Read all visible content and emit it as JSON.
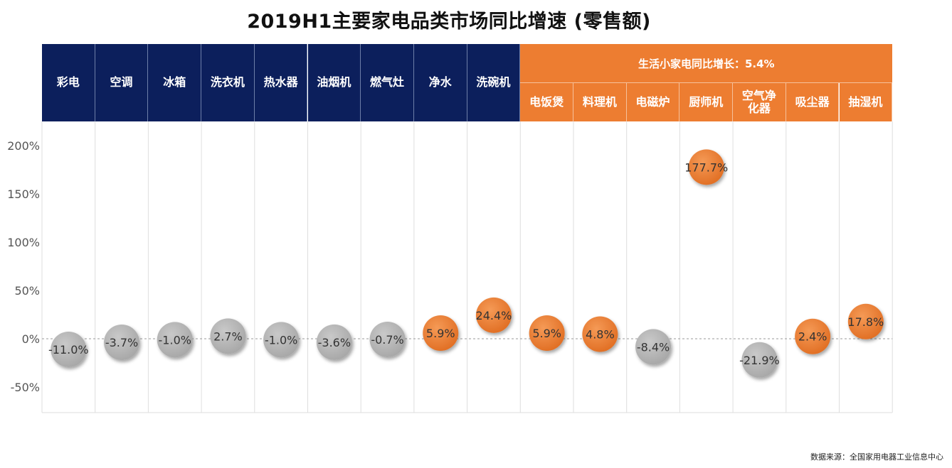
{
  "title": "2019H1主要家电品类市场同比增速 (零售额)",
  "source": "数据来源：全国家用电器工业信息中心",
  "group_header": "生活小家电同比增长：5.4%",
  "colors": {
    "navy": "#0c1f5c",
    "orange": "#ed7d31",
    "gray": "#b3b3b3"
  },
  "chart_data": {
    "type": "scatter",
    "title": "2019H1主要家电品类市场同比增速 (零售额)",
    "categories": [
      "彩电",
      "空调",
      "冰箱",
      "洗衣机",
      "热水器",
      "油烟机",
      "燃气灶",
      "净水",
      "洗碗机",
      "电饭煲",
      "料理机",
      "电磁炉",
      "厨师机",
      "空气净化器",
      "吸尘器",
      "抽湿机"
    ],
    "header_labels": [
      "彩电",
      "空调",
      "冰箱",
      "洗衣机",
      "热水器",
      "油烟机",
      "燃气灶",
      "净水",
      "洗碗机",
      "电饭煲",
      "料理机",
      "电磁炉",
      "厨师机",
      "空气净\n化器",
      "吸尘器",
      "抽湿机"
    ],
    "values": [
      -11.0,
      -3.7,
      -1.0,
      2.7,
      -1.0,
      -3.6,
      -0.7,
      5.9,
      24.4,
      5.9,
      4.8,
      -8.4,
      177.7,
      -21.9,
      2.4,
      17.8
    ],
    "labels": [
      "-11.0%",
      "-3.7%",
      "-1.0%",
      "2.7%",
      "-1.0%",
      "-3.6%",
      "-0.7%",
      "5.9%",
      "24.4%",
      "5.9%",
      "4.8%",
      "-8.4%",
      "177.7%",
      "-21.9%",
      "2.4%",
      "17.8%"
    ],
    "highlight": [
      false,
      false,
      false,
      false,
      false,
      false,
      false,
      true,
      true,
      true,
      true,
      false,
      true,
      false,
      true,
      true
    ],
    "small_appliance": [
      false,
      false,
      false,
      false,
      false,
      false,
      false,
      false,
      false,
      true,
      true,
      true,
      true,
      true,
      true,
      true
    ],
    "yticks": [
      200,
      150,
      100,
      50,
      0,
      -50
    ],
    "ytick_labels": [
      "200%",
      "150%",
      "100%",
      "50%",
      "0%",
      "-50%"
    ],
    "ylim": [
      -75,
      210
    ],
    "grid": true
  }
}
